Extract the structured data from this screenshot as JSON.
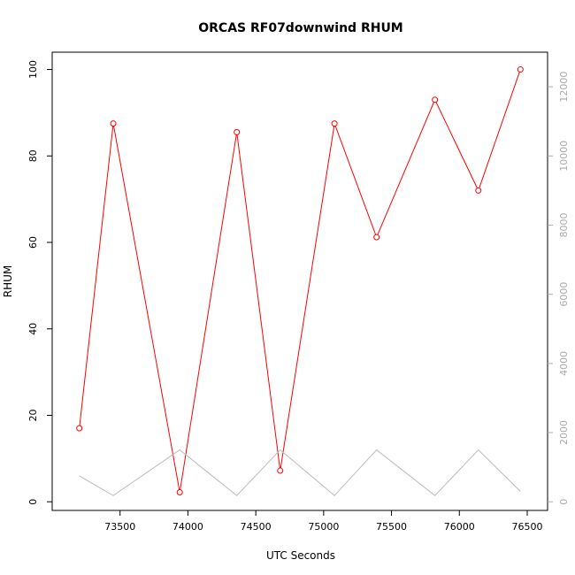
{
  "chart_data": {
    "type": "line",
    "title": "ORCAS RF07downwind RHUM",
    "xlabel": "UTC Seconds",
    "ylabel": "RHUM",
    "xlim": [
      73000,
      76650
    ],
    "ylim": [
      -2,
      104
    ],
    "y2lim": [
      -250,
      13000
    ],
    "x_ticks": [
      73500,
      74000,
      74500,
      75000,
      75500,
      76000,
      76500
    ],
    "y_ticks": [
      0,
      20,
      40,
      60,
      80,
      100
    ],
    "y2_ticks": [
      0,
      2000,
      4000,
      6000,
      8000,
      10000,
      12000
    ],
    "grid": false,
    "legend": "none",
    "series": [
      {
        "axis": "left",
        "color": "#ff0000",
        "markers": true,
        "x": [
          73200,
          73450,
          73940,
          74360,
          74680,
          75080,
          75390,
          75820,
          76140,
          76450
        ],
        "y": [
          17,
          87.5,
          2.2,
          85.5,
          7.2,
          87.5,
          61.2,
          93,
          72,
          100
        ]
      },
      {
        "axis": "right",
        "color": "#bbbbbb",
        "markers": false,
        "x": [
          73200,
          73450,
          73940,
          74360,
          74680,
          75080,
          75390,
          75820,
          76140,
          76450
        ],
        "y": [
          750,
          180,
          1500,
          180,
          1500,
          180,
          1500,
          180,
          1500,
          300
        ]
      }
    ]
  }
}
